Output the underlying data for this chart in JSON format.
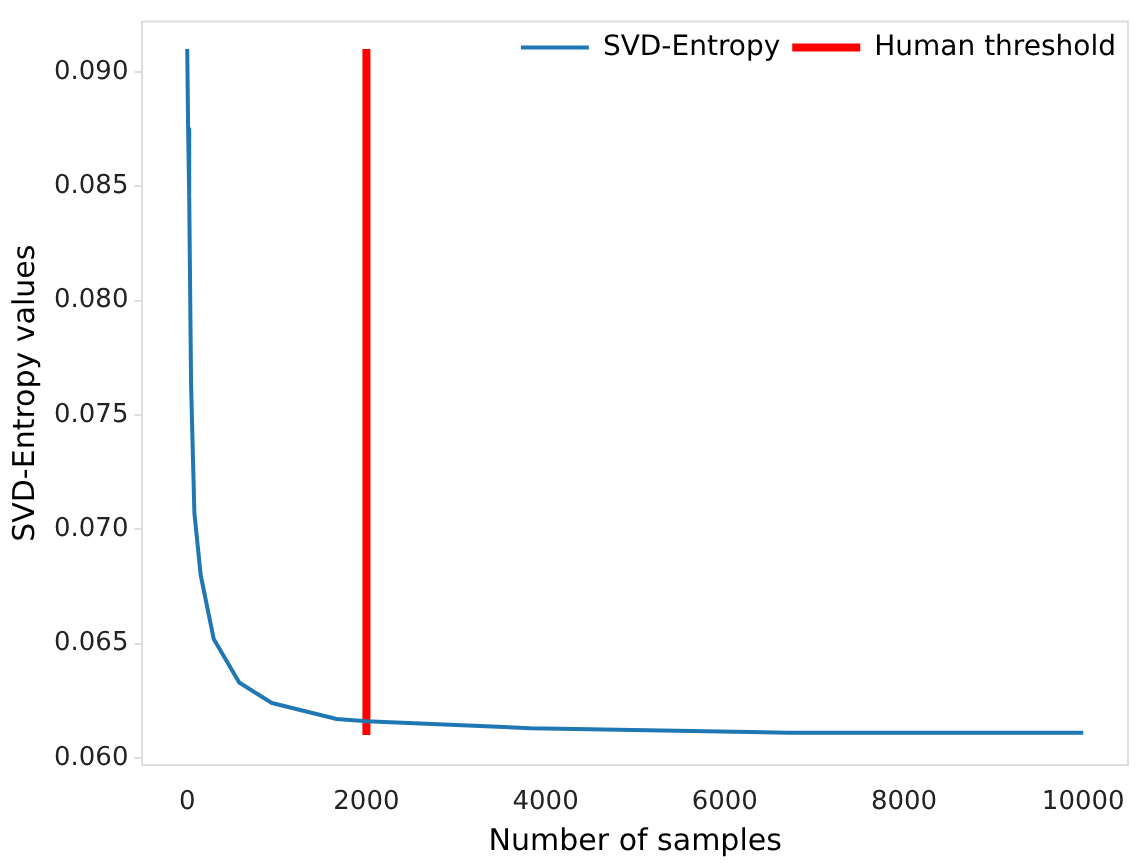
{
  "chart_data": {
    "type": "line",
    "xlabel": "Number of samples",
    "ylabel": "SVD-Entropy values",
    "xlim": [
      -500,
      10500
    ],
    "ylim": [
      0.0597,
      0.0922
    ],
    "xticks": [
      0,
      2000,
      4000,
      6000,
      8000,
      10000
    ],
    "yticks": [
      {
        "value": 0.06,
        "label": "0.060"
      },
      {
        "value": 0.065,
        "label": "0.065"
      },
      {
        "value": 0.07,
        "label": "0.070"
      },
      {
        "value": 0.075,
        "label": "0.075"
      },
      {
        "value": 0.08,
        "label": "0.080"
      },
      {
        "value": 0.085,
        "label": "0.085"
      },
      {
        "value": 0.09,
        "label": "0.090"
      }
    ],
    "grid": false,
    "legend": "top right",
    "marker": "none",
    "line_style": "solid",
    "series": [
      {
        "name": "SVD-Entropy",
        "color": "#1f77b4",
        "x": [
          0,
          10,
          22,
          43,
          80,
          150,
          296,
          580,
          945,
          1667,
          2000,
          3830,
          6710,
          10000
        ],
        "values": [
          0.091,
          0.0875,
          0.0846,
          0.0763,
          0.0707,
          0.068,
          0.0652,
          0.0633,
          0.0624,
          0.0617,
          0.0616,
          0.0613,
          0.0611,
          0.0611
        ]
      },
      {
        "name": "Human threshold",
        "color": "#ff0000",
        "x": [
          2000,
          2000
        ],
        "values": [
          0.061,
          0.091
        ]
      }
    ]
  }
}
